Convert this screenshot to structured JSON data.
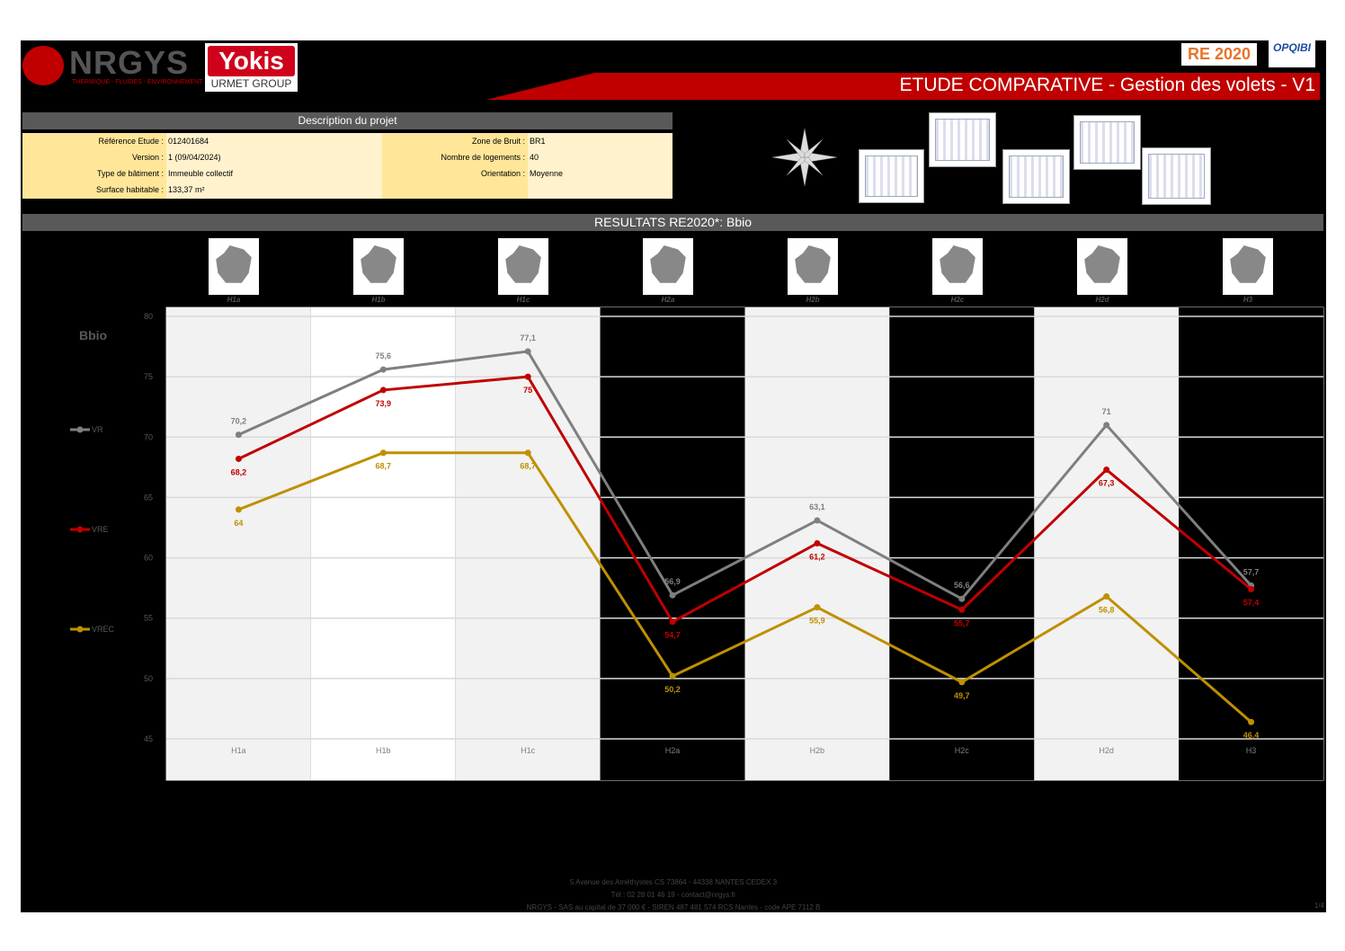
{
  "header": {
    "logo_nrgys": "NRGYS",
    "logo_nrgys_tagline": "THERMIQUE - FLUIDES - ENVIRONNEMENT",
    "logo_yokis": "Yokis",
    "logo_yokis_sub": "URMET GROUP",
    "badge_re2020": "RE 2020",
    "badge_opqibi": "OPQIBI",
    "title": "ETUDE COMPARATIVE - Gestion des volets - V1"
  },
  "project": {
    "section_title": "Description du projet",
    "left": [
      {
        "label": "Référence Etude :",
        "value": "012401684"
      },
      {
        "label": "Version :",
        "value": "1 (09/04/2024)"
      },
      {
        "label": "Type de bâtiment :",
        "value": "Immeuble collectif"
      },
      {
        "label": "Surface habitable :",
        "value": "133,37 m²"
      }
    ],
    "right": [
      {
        "label": "Zone de Bruit :",
        "value": "BR1"
      },
      {
        "label": "Nombre de logements :",
        "value": "40"
      },
      {
        "label": "Orientation :",
        "value": "Moyenne"
      }
    ]
  },
  "results": {
    "section_title": "RESULTATS RE2020*: Bbio"
  },
  "chart_data": {
    "type": "line",
    "ylabel": "Bbio",
    "ylim": [
      45,
      80
    ],
    "yticks": [
      45,
      50,
      55,
      60,
      65,
      70,
      75,
      80
    ],
    "grid": true,
    "legend": "left",
    "categories": [
      "H1a",
      "H1b",
      "H1c",
      "H2a",
      "H2b",
      "H2c",
      "H2d",
      "H3"
    ],
    "series": [
      {
        "name": "VR",
        "color": "#7f7f7f",
        "values": [
          70.2,
          75.6,
          77.1,
          56.9,
          63.1,
          56.6,
          71,
          57.7
        ],
        "labels": [
          "70,2",
          "75,6",
          "77,1",
          "56,9",
          "63,1",
          "56,6",
          "71",
          "57,7"
        ]
      },
      {
        "name": "VRE",
        "color": "#c00000",
        "values": [
          68.2,
          73.9,
          75,
          54.7,
          61.2,
          55.7,
          67.3,
          57.4
        ],
        "labels": [
          "68,2",
          "73,9",
          "75",
          "54,7",
          "61,2",
          "55,7",
          "67,3",
          "57,4"
        ]
      },
      {
        "name": "VREC",
        "color": "#bf9000",
        "values": [
          64,
          68.7,
          68.7,
          50.2,
          55.9,
          49.7,
          56.8,
          46.4
        ],
        "labels": [
          "64",
          "68,7",
          "68,7",
          "50,2",
          "55,9",
          "49,7",
          "56,8",
          "46,4"
        ]
      }
    ],
    "column_bands": [
      "#f2f2f2",
      "#ffffff",
      "#f2f2f2",
      "#000000",
      "#f2f2f2",
      "#000000",
      "#f2f2f2",
      "#000000"
    ]
  },
  "footer": {
    "line1": "5 Avenue des Améthystes CS 73864 - 44338 NANTES CEDEX 3",
    "line2": "Tél : 02 28 01 46 19 - contact@nrgys.fr",
    "line3": "NRGYS - SAS au capital de 37 000 € - SIREN 487 481 574 RCS Nantes - code APE 7112 B",
    "page": "1/4"
  }
}
